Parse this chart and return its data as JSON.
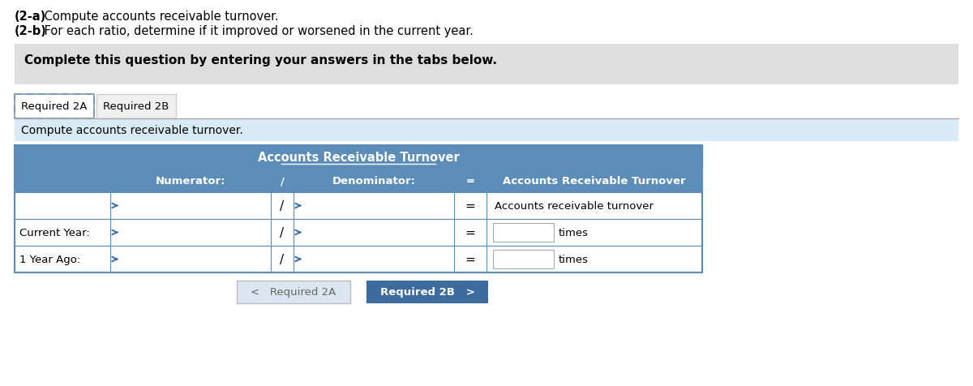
{
  "title_bold1": "(2-a)",
  "title_rest1": " Compute accounts receivable turnover.",
  "title_bold2": "(2-b)",
  "title_rest2": " For each ratio, determine if it improved or worsened in the current year.",
  "instruction_box_text": "Complete this question by entering your answers in the tabs below.",
  "tab1_label": "Required 2A",
  "tab2_label": "Required 2B",
  "section_label": "Compute accounts receivable turnover.",
  "table_title": "Accounts Receivable Turnover",
  "col_numerator": "Numerator:",
  "col_slash": "/",
  "col_denominator": "Denominator:",
  "col_equals": "=",
  "col_result": "Accounts Receivable Turnover",
  "row0_result": "Accounts receivable turnover",
  "row1_label": "Current Year:",
  "row1_suffix": "times",
  "row2_label": "1 Year Ago:",
  "row2_suffix": "times",
  "btn1_label": "<   Required 2A",
  "btn2_label": "Required 2B   >",
  "bg_color": "#ffffff",
  "instruction_bg": "#dedede",
  "tab1_border_color": "#7799bb",
  "tab2_bg": "#f0f0f0",
  "section_bg": "#d8eaf6",
  "table_header_bg": "#5b8db8",
  "table_header_text": "#ffffff",
  "table_row_bg": "#ffffff",
  "table_border": "#5b8db8",
  "btn1_bg": "#dce6f0",
  "btn1_text": "#666666",
  "btn2_bg": "#3d6b9e",
  "btn2_text": "#ffffff",
  "arrow_color": "#4472a8",
  "separator_color": "#aaaaaa"
}
